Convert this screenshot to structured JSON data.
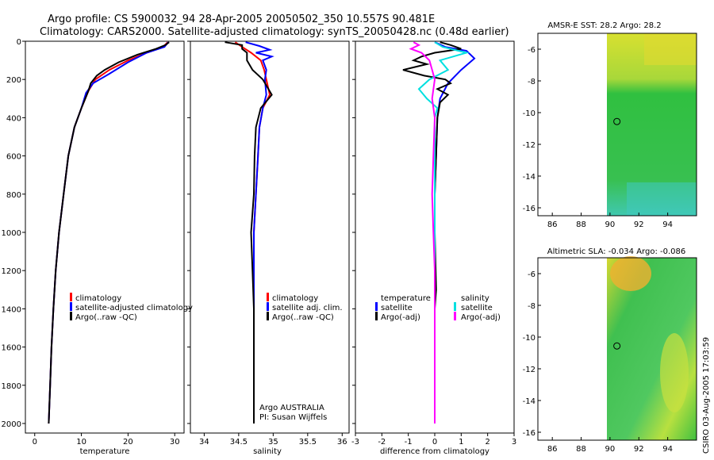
{
  "header": {
    "line1": "Argo profile: CS 5900032_94 28-Apr-2005 20050502_350 10.557S 90.481E",
    "line2": "Climatology: CARS2000. Satellite-adjusted climatology: synTS_20050428.nc (0.48d earlier)"
  },
  "credit": "CSIRO 03-Aug-2005 17:03:59",
  "colors": {
    "climatology": "#ff0000",
    "satellite": "#0000ff",
    "argo": "#000000",
    "cyan": "#00e0e0",
    "magenta": "#ff00ff"
  },
  "chart_data": [
    {
      "type": "line",
      "id": "temperature",
      "xlabel": "temperature",
      "xlim": [
        -2,
        32
      ],
      "ylim": [
        2050,
        0
      ],
      "xticks": [
        "0",
        "10",
        "20",
        "30"
      ],
      "xtick_values": [
        0,
        10,
        20,
        30
      ],
      "yticks": [
        "0",
        "200",
        "400",
        "600",
        "800",
        "1000",
        "1200",
        "1400",
        "1600",
        "1800",
        "2000"
      ],
      "ytick_values": [
        0,
        200,
        400,
        600,
        800,
        1000,
        1200,
        1400,
        1600,
        1800,
        2000
      ],
      "legend": [
        "climatology",
        "satellite-adjusted climatology",
        "Argo(..raw -QC)"
      ],
      "series": [
        {
          "name": "climatology",
          "color": "#ff0000",
          "points": [
            [
              28.5,
              5
            ],
            [
              27.5,
              30
            ],
            [
              24,
              60
            ],
            [
              20,
              100
            ],
            [
              16,
              150
            ],
            [
              13,
              200
            ],
            [
              11.5,
              260
            ],
            [
              10,
              350
            ],
            [
              8.5,
              450
            ],
            [
              7.2,
              600
            ],
            [
              6.2,
              800
            ],
            [
              5.2,
              1000
            ],
            [
              4.5,
              1200
            ],
            [
              4,
              1400
            ],
            [
              3.6,
              1600
            ],
            [
              3.3,
              1800
            ],
            [
              3.0,
              2000
            ]
          ]
        },
        {
          "name": "satellite",
          "color": "#0000ff",
          "points": [
            [
              28.6,
              5
            ],
            [
              27.8,
              30
            ],
            [
              24,
              60
            ],
            [
              20,
              110
            ],
            [
              16,
              170
            ],
            [
              12.5,
              220
            ],
            [
              11,
              270
            ],
            [
              10,
              350
            ],
            [
              8.5,
              450
            ],
            [
              7.2,
              600
            ],
            [
              6.2,
              800
            ],
            [
              5.2,
              1000
            ],
            [
              4.5,
              1200
            ],
            [
              4,
              1400
            ],
            [
              3.6,
              1600
            ],
            [
              3.3,
              1800
            ],
            [
              3.0,
              2000
            ]
          ]
        },
        {
          "name": "Argo(..raw -QC)",
          "color": "#000000",
          "points": [
            [
              28.8,
              5
            ],
            [
              28,
              20
            ],
            [
              26,
              40
            ],
            [
              22,
              70
            ],
            [
              18,
              110
            ],
            [
              15,
              150
            ],
            [
              13.3,
              180
            ],
            [
              12,
              220
            ],
            [
              11.5,
              260
            ],
            [
              10,
              350
            ],
            [
              8.5,
              450
            ],
            [
              7.2,
              600
            ],
            [
              6.2,
              800
            ],
            [
              5.2,
              1000
            ],
            [
              4.5,
              1200
            ],
            [
              4,
              1400
            ],
            [
              3.6,
              1600
            ],
            [
              3.3,
              1800
            ],
            [
              3.0,
              2000
            ]
          ]
        }
      ]
    },
    {
      "type": "line",
      "id": "salinity",
      "xlabel": "salinity",
      "xlim": [
        33.8,
        36.1
      ],
      "ylim": [
        2050,
        0
      ],
      "xticks": [
        "34",
        "34.5",
        "35",
        "35.5",
        "36"
      ],
      "xtick_values": [
        34,
        34.5,
        35,
        35.5,
        36
      ],
      "legend": [
        "climatology",
        "satellite adj. clim.",
        "Argo(..raw -QC)"
      ],
      "annotations": [
        "Argo AUSTRALIA",
        "PI: Susan Wijffels"
      ],
      "series": [
        {
          "name": "climatology",
          "color": "#ff0000",
          "points": [
            [
              34.45,
              5
            ],
            [
              34.55,
              30
            ],
            [
              34.68,
              60
            ],
            [
              34.82,
              100
            ],
            [
              34.87,
              150
            ],
            [
              34.9,
              200
            ],
            [
              34.95,
              280
            ],
            [
              34.85,
              350
            ],
            [
              34.8,
              450
            ],
            [
              34.78,
              600
            ],
            [
              34.75,
              800
            ],
            [
              34.72,
              1000
            ],
            [
              34.72,
              1200
            ],
            [
              34.72,
              1400
            ],
            [
              34.72,
              1600
            ],
            [
              34.72,
              1800
            ],
            [
              34.72,
              2000
            ]
          ]
        },
        {
          "name": "satellite",
          "color": "#0000ff",
          "points": [
            [
              34.6,
              5
            ],
            [
              34.8,
              25
            ],
            [
              34.95,
              45
            ],
            [
              34.75,
              60
            ],
            [
              34.98,
              80
            ],
            [
              34.85,
              100
            ],
            [
              34.9,
              150
            ],
            [
              34.88,
              200
            ],
            [
              34.9,
              280
            ],
            [
              34.85,
              350
            ],
            [
              34.8,
              450
            ],
            [
              34.78,
              600
            ],
            [
              34.75,
              800
            ],
            [
              34.72,
              1000
            ],
            [
              34.72,
              1200
            ],
            [
              34.72,
              1400
            ],
            [
              34.72,
              1600
            ],
            [
              34.72,
              1800
            ],
            [
              34.72,
              2000
            ]
          ]
        },
        {
          "name": "Argo(..raw -QC)",
          "color": "#000000",
          "points": [
            [
              34.3,
              5
            ],
            [
              34.55,
              20
            ],
            [
              34.55,
              40
            ],
            [
              34.62,
              60
            ],
            [
              34.62,
              100
            ],
            [
              34.7,
              150
            ],
            [
              34.85,
              200
            ],
            [
              34.98,
              280
            ],
            [
              34.82,
              350
            ],
            [
              34.75,
              450
            ],
            [
              34.73,
              600
            ],
            [
              34.72,
              800
            ],
            [
              34.68,
              1000
            ],
            [
              34.7,
              1200
            ],
            [
              34.72,
              1400
            ],
            [
              34.72,
              1600
            ],
            [
              34.72,
              1800
            ],
            [
              34.72,
              2000
            ]
          ]
        }
      ]
    },
    {
      "type": "line",
      "id": "difference",
      "xlabel": "difference from climatology",
      "xlim": [
        -3,
        3
      ],
      "ylim": [
        2050,
        0
      ],
      "xticks": [
        "-3",
        "-2",
        "-1",
        "0",
        "1",
        "2",
        "3"
      ],
      "xtick_values": [
        -3,
        -2,
        -1,
        0,
        1,
        2,
        3
      ],
      "legend": [
        "temperature",
        "satellite",
        "Argo(-adj)"
      ],
      "legend2": [
        "salinity",
        "satellite",
        "Argo(-adj)"
      ],
      "series": [
        {
          "name": "temperature satellite",
          "color": "#0000ff",
          "points": [
            [
              0,
              5
            ],
            [
              0.4,
              30
            ],
            [
              1.2,
              50
            ],
            [
              1.5,
              90
            ],
            [
              1.0,
              150
            ],
            [
              0.5,
              220
            ],
            [
              0.2,
              300
            ],
            [
              0.1,
              400
            ],
            [
              0.05,
              600
            ],
            [
              0,
              800
            ],
            [
              0,
              1000
            ],
            [
              0,
              1400
            ],
            [
              0,
              2000
            ]
          ]
        },
        {
          "name": "temperature Argo(-adj)",
          "color": "#000000",
          "points": [
            [
              0.2,
              5
            ],
            [
              0.6,
              20
            ],
            [
              1.0,
              40
            ],
            [
              0,
              60
            ],
            [
              -0.5,
              80
            ],
            [
              -0.8,
              100
            ],
            [
              -0.3,
              120
            ],
            [
              -1.2,
              150
            ],
            [
              -0.4,
              180
            ],
            [
              0.4,
              200
            ],
            [
              0.6,
              220
            ],
            [
              0.1,
              250
            ],
            [
              0.5,
              280
            ],
            [
              0.2,
              320
            ],
            [
              0.1,
              400
            ],
            [
              0.05,
              600
            ],
            [
              0,
              800
            ],
            [
              0,
              1000
            ],
            [
              0.05,
              1300
            ],
            [
              0,
              1400
            ],
            [
              0,
              1600
            ],
            [
              0,
              1800
            ],
            [
              0,
              2000
            ]
          ]
        },
        {
          "name": "salinity satellite",
          "color": "#00e0e0",
          "points": [
            [
              0,
              5
            ],
            [
              0.3,
              30
            ],
            [
              1.2,
              60
            ],
            [
              0.2,
              100
            ],
            [
              0.5,
              150
            ],
            [
              -0.2,
              200
            ],
            [
              -0.6,
              250
            ],
            [
              -0.3,
              300
            ],
            [
              0.1,
              350
            ],
            [
              0,
              400
            ],
            [
              0,
              600
            ],
            [
              0,
              800
            ],
            [
              0,
              1000
            ],
            [
              0,
              1400
            ],
            [
              0,
              2000
            ]
          ]
        },
        {
          "name": "salinity Argo(-adj)",
          "color": "#ff00ff",
          "points": [
            [
              -0.8,
              5
            ],
            [
              -0.6,
              20
            ],
            [
              -0.9,
              40
            ],
            [
              -0.5,
              60
            ],
            [
              -0.2,
              100
            ],
            [
              -0.1,
              150
            ],
            [
              0,
              200
            ],
            [
              -0.1,
              300
            ],
            [
              0,
              400
            ],
            [
              -0.05,
              600
            ],
            [
              -0.1,
              800
            ],
            [
              -0.05,
              1000
            ],
            [
              0,
              1200
            ],
            [
              0,
              1400
            ],
            [
              0,
              2000
            ]
          ]
        }
      ]
    },
    {
      "type": "heatmap",
      "id": "sst_map",
      "title": "AMSR-E SST: 28.2 Argo: 28.2",
      "xlim": [
        85,
        96
      ],
      "ylim": [
        -16.5,
        -5
      ],
      "xticks": [
        "86",
        "88",
        "90",
        "92",
        "94"
      ],
      "xtick_values": [
        86,
        88,
        90,
        92,
        94
      ],
      "yticks": [
        "-6",
        "-8",
        "-10",
        "-12",
        "-14",
        "-16"
      ],
      "ytick_values": [
        -6,
        -8,
        -10,
        -12,
        -14,
        -16
      ],
      "data_xrange": [
        90,
        95.8
      ],
      "marker": [
        90.48,
        -10.56
      ]
    },
    {
      "type": "heatmap",
      "id": "sla_map",
      "title": "Altimetric SLA: -0.034 Argo: -0.086",
      "xlim": [
        85,
        96
      ],
      "ylim": [
        -16.5,
        -5
      ],
      "xticks": [
        "86",
        "88",
        "90",
        "92",
        "94"
      ],
      "xtick_values": [
        86,
        88,
        90,
        92,
        94
      ],
      "yticks": [
        "-6",
        "-8",
        "-10",
        "-12",
        "-14",
        "-16"
      ],
      "ytick_values": [
        -6,
        -8,
        -10,
        -12,
        -14,
        -16
      ],
      "data_xrange": [
        90,
        95.8
      ],
      "marker": [
        90.48,
        -10.56
      ]
    }
  ]
}
